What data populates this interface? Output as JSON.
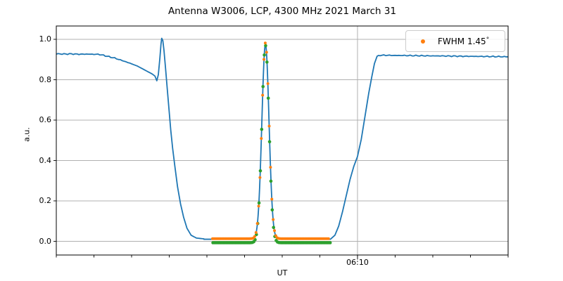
{
  "chart_data": {
    "type": "line",
    "title": "Antenna W3006, LCP, 4300 MHz 2021 March 31",
    "xlabel": "UT",
    "ylabel": "a.u.",
    "x_unit": "minutes after 06:00 UT",
    "xlim": [
      2,
      14
    ],
    "ylim": [
      -0.068,
      1.066
    ],
    "yticks": [
      0.0,
      0.2,
      0.4,
      0.6,
      0.8,
      1.0
    ],
    "ytick_labels": [
      "0.0",
      "0.2",
      "0.4",
      "0.6",
      "0.8",
      "1.0"
    ],
    "xticks_minor": [
      2,
      3,
      4,
      5,
      6,
      7,
      8,
      9,
      10,
      11,
      12,
      13,
      14
    ],
    "xticks_major": [
      10
    ],
    "xtick_major_labels": [
      "06:10"
    ],
    "grid": {
      "horizontal": true,
      "vertical": "major-only",
      "color": "#b0b0b0"
    },
    "legend": {
      "position": "upper right",
      "label": "FWHM 1.45",
      "degree_symbol": "°",
      "marker_color": "#ff7f0e"
    },
    "colors": {
      "signal": "#1f77b4",
      "data_markers": "#ff7f0e",
      "fit_markers": "#2ca02c"
    },
    "series": [
      {
        "name": "drift-scan-signal",
        "type": "line",
        "color": "#1f77b4",
        "line_width": 1.8,
        "points_before_gaussian": [
          [
            2.0,
            0.928
          ],
          [
            2.2,
            0.9272
          ],
          [
            2.4,
            0.9278
          ],
          [
            2.6,
            0.9262
          ],
          [
            2.8,
            0.9268
          ],
          [
            3.0,
            0.9258
          ],
          [
            3.16,
            0.925
          ],
          [
            3.35,
            0.916
          ],
          [
            3.55,
            0.907
          ],
          [
            3.75,
            0.895
          ],
          [
            3.95,
            0.882
          ],
          [
            4.15,
            0.868
          ],
          [
            4.35,
            0.848
          ],
          [
            4.55,
            0.828
          ],
          [
            4.62,
            0.818
          ],
          [
            4.67,
            0.795
          ],
          [
            4.71,
            0.825
          ],
          [
            4.75,
            0.905
          ],
          [
            4.78,
            0.975
          ],
          [
            4.8,
            1.005
          ],
          [
            4.83,
            0.993
          ],
          [
            4.86,
            0.945
          ],
          [
            4.9,
            0.86
          ],
          [
            4.94,
            0.77
          ],
          [
            4.99,
            0.66
          ],
          [
            5.04,
            0.55
          ],
          [
            5.09,
            0.46
          ],
          [
            5.15,
            0.37
          ],
          [
            5.22,
            0.27
          ],
          [
            5.3,
            0.185
          ],
          [
            5.38,
            0.12
          ],
          [
            5.47,
            0.065
          ],
          [
            5.58,
            0.03
          ],
          [
            5.72,
            0.016
          ],
          [
            5.92,
            0.012
          ]
        ],
        "gaussian": {
          "t_start": 5.92,
          "t_end": 9.28,
          "baseline": 0.01,
          "amplitude": 0.965,
          "center": 7.555,
          "sigma": 0.095
        },
        "points_after_gaussian": [
          [
            9.4,
            0.03
          ],
          [
            9.5,
            0.075
          ],
          [
            9.6,
            0.145
          ],
          [
            9.7,
            0.225
          ],
          [
            9.8,
            0.305
          ],
          [
            9.9,
            0.37
          ],
          [
            10.0,
            0.42
          ],
          [
            10.1,
            0.505
          ],
          [
            10.2,
            0.62
          ],
          [
            10.3,
            0.735
          ],
          [
            10.38,
            0.815
          ],
          [
            10.45,
            0.88
          ],
          [
            10.52,
            0.916
          ],
          [
            10.6,
            0.921
          ],
          [
            10.8,
            0.921
          ],
          [
            11.0,
            0.92
          ],
          [
            11.2,
            0.92
          ],
          [
            11.4,
            0.9195
          ],
          [
            11.6,
            0.919
          ],
          [
            11.8,
            0.9185
          ],
          [
            12.0,
            0.918
          ],
          [
            12.2,
            0.9178
          ],
          [
            12.4,
            0.9172
          ],
          [
            12.6,
            0.9168
          ],
          [
            12.8,
            0.916
          ],
          [
            13.0,
            0.9158
          ],
          [
            13.2,
            0.9155
          ],
          [
            13.4,
            0.915
          ],
          [
            13.6,
            0.9148
          ],
          [
            13.8,
            0.9142
          ],
          [
            14.0,
            0.9135
          ]
        ]
      },
      {
        "name": "fit-markers-green",
        "type": "scatter",
        "color": "#2ca02c",
        "radius": 2.3,
        "gaussian": {
          "t_start": 6.16,
          "t_end": 9.3,
          "dt": 0.035,
          "baseline": -0.007,
          "amplitude": 0.977,
          "center": 7.555,
          "sigma": 0.095
        }
      },
      {
        "name": "data-markers-orange",
        "type": "scatter",
        "color": "#ff7f0e",
        "radius": 2.0,
        "gaussian": {
          "t_start": 6.15,
          "t_end": 9.24,
          "dt": 0.035,
          "baseline": 0.013,
          "amplitude": 0.97,
          "center": 7.555,
          "sigma": 0.095
        }
      }
    ]
  }
}
